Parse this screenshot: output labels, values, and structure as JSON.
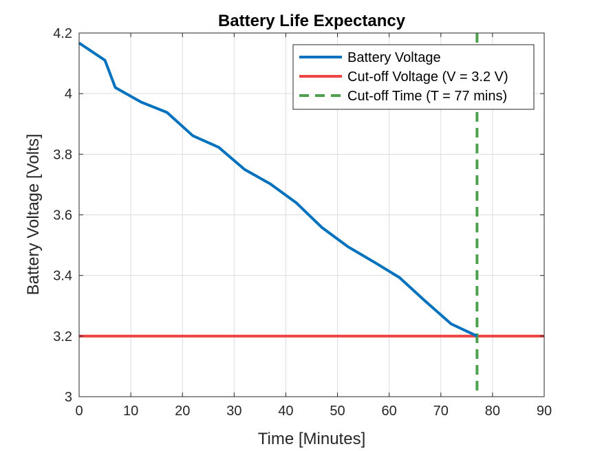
{
  "chart_data": {
    "type": "line",
    "title": "Battery Life Expectancy",
    "xlabel": "Time [Minutes]",
    "ylabel": "Battery Voltage [Volts]",
    "xlim": [
      0,
      90
    ],
    "ylim": [
      3,
      4.2
    ],
    "xticks": [
      0,
      10,
      20,
      30,
      40,
      50,
      60,
      70,
      80,
      90
    ],
    "yticks": [
      3,
      3.2,
      3.4,
      3.6,
      3.8,
      4,
      4.2
    ],
    "ytick_labels": [
      "3",
      "3.2",
      "3.4",
      "3.6",
      "3.8",
      "4",
      "4.2"
    ],
    "grid": true,
    "legend_position": "top-right",
    "series": [
      {
        "name": "Battery Voltage",
        "color": "#0072BD",
        "style": "solid",
        "x": [
          0,
          5,
          7,
          12,
          17,
          22,
          27,
          32,
          37,
          42,
          47,
          52,
          57,
          62,
          67,
          72,
          77
        ],
        "y": [
          4.167,
          4.11,
          4.02,
          3.972,
          3.938,
          3.861,
          3.823,
          3.75,
          3.702,
          3.64,
          3.558,
          3.495,
          3.445,
          3.393,
          3.315,
          3.24,
          3.2
        ]
      },
      {
        "name": "Cut-off Voltage (V = 3.2 V)",
        "color": "#EE4444",
        "style": "solid",
        "kind": "hline",
        "y": 3.2
      },
      {
        "name": "Cut-off Time (T = 77 mins)",
        "color": "#4DA04D",
        "style": "dashed",
        "kind": "vline",
        "x": 77
      }
    ]
  }
}
